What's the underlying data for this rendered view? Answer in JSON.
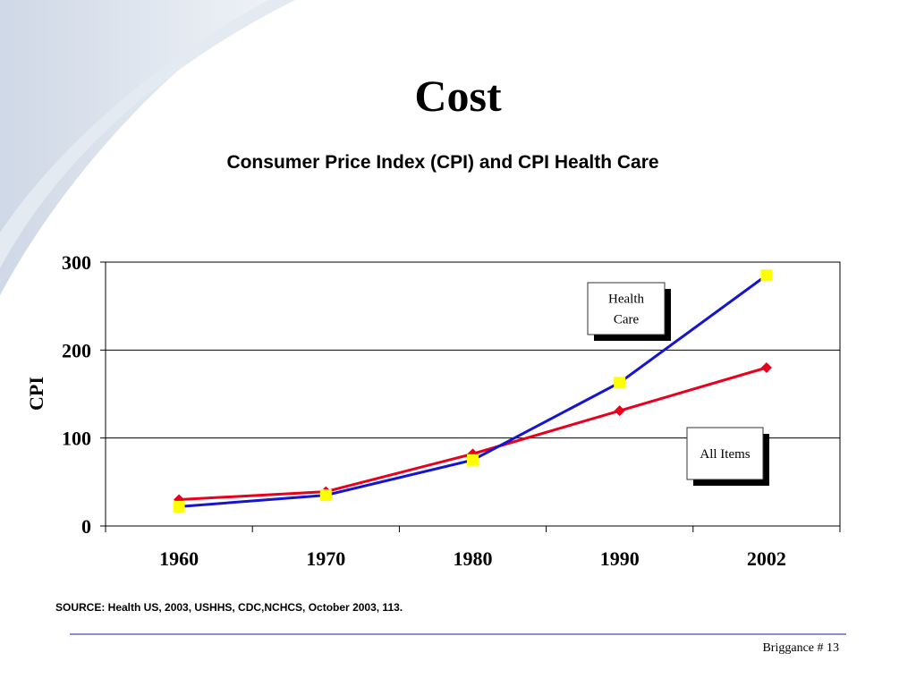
{
  "slide": {
    "title": "Cost",
    "source": "SOURCE: Health US, 2003, USHHS, CDC,NCHCS, October 2003,  113.",
    "footer": "Briggance # 13"
  },
  "chart_data": {
    "type": "line",
    "title": "Consumer Price Index (CPI)  and CPI Health Care",
    "xlabel": "",
    "ylabel": "CPI",
    "categories": [
      "1960",
      "1970",
      "1980",
      "1990",
      "2002"
    ],
    "ylim": [
      0,
      300
    ],
    "yticks": [
      0,
      100,
      200,
      300
    ],
    "grid": true,
    "series": [
      {
        "name": "All Items",
        "values": [
          30,
          39,
          82,
          131,
          180
        ],
        "line_color": "#e8001c",
        "marker": "diamond",
        "marker_color": "#e8001c"
      },
      {
        "name": "Health Care",
        "values": [
          22,
          35,
          75,
          163,
          285
        ],
        "line_color": "#1515d0",
        "marker": "square",
        "marker_color": "#ffff00"
      }
    ],
    "annotations": [
      {
        "series": "Health Care",
        "text": [
          "Health",
          "Care"
        ]
      },
      {
        "series": "All Items",
        "text": [
          "All Items"
        ]
      }
    ]
  }
}
